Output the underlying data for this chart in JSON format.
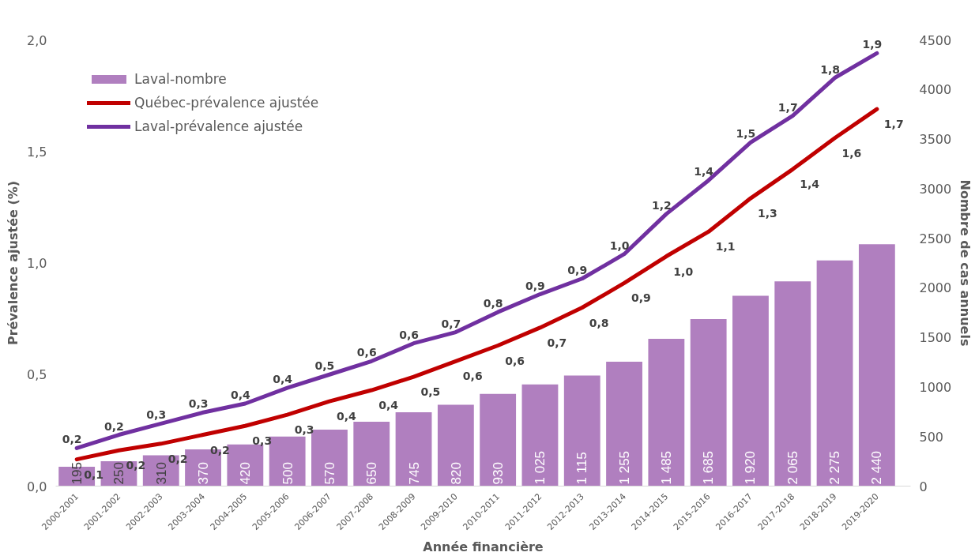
{
  "chart_data": {
    "type": "line",
    "xlabel": "Année financière",
    "ylabel": "Prévalence ajustée (%)",
    "y2label": "Nombre de cas annuels",
    "categories": [
      "2000-2001",
      "2001-2002",
      "2002-2003",
      "2003-2004",
      "2004-2005",
      "2005-2006",
      "2006-2007",
      "2007-2008",
      "2008-2009",
      "2009-2010",
      "2010-2011",
      "2011-2012",
      "2012-2013",
      "2013-2014",
      "2014-2015",
      "2015-2016",
      "2016-2017",
      "2017-2018",
      "2018-2019",
      "2019-2020"
    ],
    "ylim": [
      0,
      2.0
    ],
    "yticks": [
      {
        "value": 0,
        "label": "0,0"
      },
      {
        "value": 0.5,
        "label": "0,5"
      },
      {
        "value": 1.0,
        "label": "1,0"
      },
      {
        "value": 1.5,
        "label": "1,5"
      },
      {
        "value": 2.0,
        "label": "2,0"
      }
    ],
    "y2lim": [
      0,
      4500
    ],
    "y2ticks": [
      0,
      500,
      1000,
      1500,
      2000,
      2500,
      3000,
      3500,
      4000,
      4500
    ],
    "grid": false,
    "legend": "top left",
    "series": [
      {
        "name": "Laval-nombre",
        "type": "bar",
        "axis": "y2",
        "color": "#b07fbf",
        "values": [
          195,
          250,
          310,
          370,
          420,
          500,
          570,
          650,
          745,
          820,
          930,
          1025,
          1115,
          1255,
          1485,
          1685,
          1920,
          2065,
          2275,
          2440
        ],
        "value_labels": [
          "195",
          "250",
          "310",
          "370",
          "420",
          "500",
          "570",
          "650",
          "745",
          "820",
          "930",
          "1 025",
          "1 115",
          "1 255",
          "1 485",
          "1 685",
          "1 920",
          "2 065",
          "2 275",
          "2 440"
        ]
      },
      {
        "name": "Québec-prévalence ajustée",
        "color": "#c00000",
        "values": [
          0.12,
          0.16,
          0.19,
          0.23,
          0.27,
          0.32,
          0.38,
          0.43,
          0.49,
          0.56,
          0.63,
          0.71,
          0.8,
          0.91,
          1.03,
          1.14,
          1.29,
          1.42,
          1.56,
          1.69
        ],
        "value_labels": [
          "0,1",
          "0,2",
          "0,2",
          "0,2",
          "0,3",
          "0,3",
          "0,4",
          "0,4",
          "0,5",
          "0,6",
          "0,6",
          "0,7",
          "0,8",
          "0,9",
          "1,0",
          "1,1",
          "1,3",
          "1,4",
          "1,6",
          "1,7"
        ]
      },
      {
        "name": "Laval-prévalence ajustée",
        "color": "#7030a0",
        "values": [
          0.17,
          0.23,
          0.28,
          0.33,
          0.37,
          0.44,
          0.5,
          0.56,
          0.64,
          0.69,
          0.78,
          0.86,
          0.93,
          1.04,
          1.22,
          1.37,
          1.54,
          1.66,
          1.83,
          1.94
        ],
        "value_labels": [
          "0,2",
          "0,2",
          "0,3",
          "0,3",
          "0,4",
          "0,4",
          "0,5",
          "0,6",
          "0,6",
          "0,7",
          "0,8",
          "0,9",
          "0,9",
          "1,0",
          "1,2",
          "1,4",
          "1,5",
          "1,7",
          "1,8",
          "1,9"
        ]
      }
    ]
  }
}
